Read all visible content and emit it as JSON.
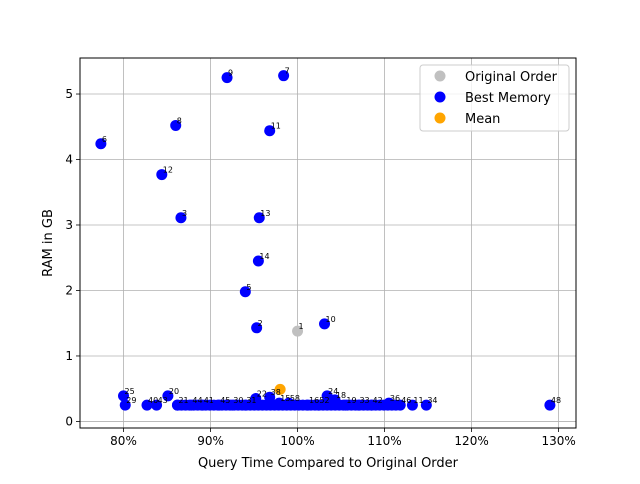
{
  "chart_data": {
    "type": "scatter",
    "title": "",
    "xlabel": "Query Time Compared to Original Order",
    "ylabel": "RAM in GB",
    "xlim": [
      0.75,
      1.32
    ],
    "ylim": [
      -0.1,
      5.55
    ],
    "x_ticks": [
      0.8,
      0.9,
      1.0,
      1.1,
      1.2,
      1.3
    ],
    "x_tick_labels": [
      "80%",
      "90%",
      "100%",
      "110%",
      "120%",
      "130%"
    ],
    "y_ticks": [
      0,
      1,
      2,
      3,
      4,
      5
    ],
    "y_tick_labels": [
      "0",
      "1",
      "2",
      "3",
      "4",
      "5"
    ],
    "grid": true,
    "legend_position": "top-right",
    "series": [
      {
        "name": "Original Order",
        "color": "#c0c0c0",
        "points": [
          {
            "x": 1.0,
            "y": 1.38,
            "label": "1"
          }
        ]
      },
      {
        "name": "Best Memory",
        "color": "#0000ff",
        "points": [
          {
            "x": 0.774,
            "y": 4.24,
            "label": "6"
          },
          {
            "x": 0.919,
            "y": 5.25,
            "label": "9"
          },
          {
            "x": 0.984,
            "y": 5.28,
            "label": "7"
          },
          {
            "x": 0.86,
            "y": 4.52,
            "label": "8"
          },
          {
            "x": 0.968,
            "y": 4.44,
            "label": "11"
          },
          {
            "x": 0.844,
            "y": 3.77,
            "label": "12"
          },
          {
            "x": 0.866,
            "y": 3.11,
            "label": "3"
          },
          {
            "x": 0.956,
            "y": 3.11,
            "label": "13"
          },
          {
            "x": 0.955,
            "y": 2.45,
            "label": "14"
          },
          {
            "x": 0.94,
            "y": 1.98,
            "label": "5"
          },
          {
            "x": 0.953,
            "y": 1.43,
            "label": "2"
          },
          {
            "x": 1.031,
            "y": 1.49,
            "label": "10"
          },
          {
            "x": 0.8,
            "y": 0.39,
            "label": "25"
          },
          {
            "x": 0.802,
            "y": 0.25,
            "label": "29"
          },
          {
            "x": 0.827,
            "y": 0.25,
            "label": "40"
          },
          {
            "x": 0.838,
            "y": 0.25,
            "label": "43"
          },
          {
            "x": 0.851,
            "y": 0.39,
            "label": "20"
          },
          {
            "x": 0.862,
            "y": 0.25,
            "label": "21"
          },
          {
            "x": 0.878,
            "y": 0.25,
            "label": "44"
          },
          {
            "x": 0.891,
            "y": 0.25,
            "label": "41"
          },
          {
            "x": 0.91,
            "y": 0.25,
            "label": "45"
          },
          {
            "x": 0.925,
            "y": 0.25,
            "label": "30"
          },
          {
            "x": 0.94,
            "y": 0.25,
            "label": "31"
          },
          {
            "x": 0.952,
            "y": 0.35,
            "label": "22"
          },
          {
            "x": 0.968,
            "y": 0.37,
            "label": "38"
          },
          {
            "x": 0.979,
            "y": 0.28,
            "label": "15"
          },
          {
            "x": 0.99,
            "y": 0.28,
            "label": "58"
          },
          {
            "x": 1.012,
            "y": 0.25,
            "label": "16"
          },
          {
            "x": 1.024,
            "y": 0.25,
            "label": "52"
          },
          {
            "x": 1.034,
            "y": 0.39,
            "label": "24"
          },
          {
            "x": 1.043,
            "y": 0.33,
            "label": "18"
          },
          {
            "x": 1.055,
            "y": 0.25,
            "label": "19"
          },
          {
            "x": 1.07,
            "y": 0.25,
            "label": "33"
          },
          {
            "x": 1.085,
            "y": 0.25,
            "label": "42"
          },
          {
            "x": 1.105,
            "y": 0.28,
            "label": "36"
          },
          {
            "x": 1.118,
            "y": 0.25,
            "label": "46"
          },
          {
            "x": 1.132,
            "y": 0.25,
            "label": "11"
          },
          {
            "x": 1.148,
            "y": 0.25,
            "label": "34"
          },
          {
            "x": 1.29,
            "y": 0.25,
            "label": "48"
          }
        ],
        "cluster_band": {
          "x_from": 0.862,
          "x_to": 1.113,
          "y": 0.25,
          "count": 55
        }
      },
      {
        "name": "Mean",
        "color": "#ffa500",
        "points": [
          {
            "x": 0.98,
            "y": 0.49,
            "label": ""
          }
        ]
      }
    ]
  }
}
